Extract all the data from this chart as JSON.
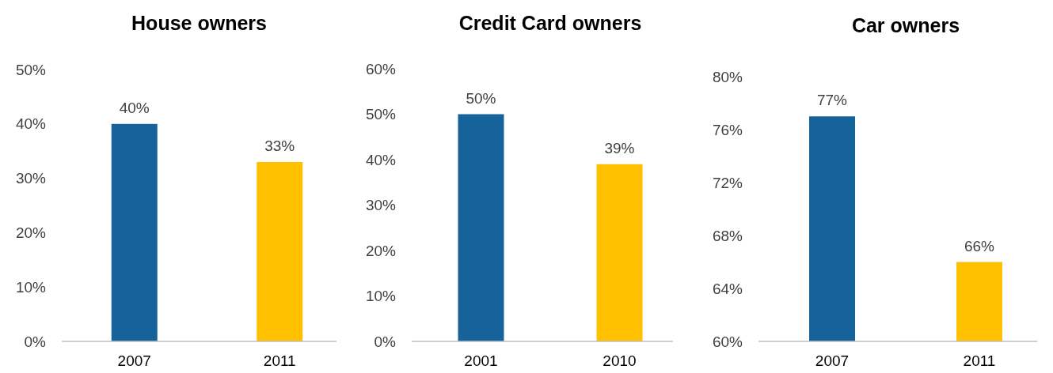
{
  "chart_data": [
    {
      "type": "bar",
      "title": "House owners",
      "categories": [
        "2007",
        "2011"
      ],
      "values": [
        40,
        33
      ],
      "colors": [
        "#15639a",
        "#ffc000"
      ],
      "value_labels": [
        "40%",
        "33%"
      ],
      "ylim": [
        0,
        50
      ],
      "yticks": [
        {
          "value": 0,
          "label": "0%"
        },
        {
          "value": 10,
          "label": "10%"
        },
        {
          "value": 20,
          "label": "20%"
        },
        {
          "value": 30,
          "label": "30%"
        },
        {
          "value": 40,
          "label": "40%"
        },
        {
          "value": 50,
          "label": "50%"
        }
      ]
    },
    {
      "type": "bar",
      "title": "Credit Card owners",
      "categories": [
        "2001",
        "2010"
      ],
      "values": [
        50,
        39
      ],
      "colors": [
        "#15639a",
        "#ffc000"
      ],
      "value_labels": [
        "50%",
        "39%"
      ],
      "ylim": [
        0,
        60
      ],
      "yticks": [
        {
          "value": 0,
          "label": "0%"
        },
        {
          "value": 10,
          "label": "10%"
        },
        {
          "value": 20,
          "label": "20%"
        },
        {
          "value": 30,
          "label": "30%"
        },
        {
          "value": 40,
          "label": "40%"
        },
        {
          "value": 50,
          "label": "50%"
        },
        {
          "value": 60,
          "label": "60%"
        }
      ]
    },
    {
      "type": "bar",
      "title": "Car owners",
      "categories": [
        "2007",
        "2011"
      ],
      "values": [
        77,
        66
      ],
      "colors": [
        "#15639a",
        "#ffc000"
      ],
      "value_labels": [
        "77%",
        "66%"
      ],
      "ylim": [
        60,
        80
      ],
      "yticks": [
        {
          "value": 60,
          "label": "60%"
        },
        {
          "value": 64,
          "label": "64%"
        },
        {
          "value": 68,
          "label": "68%"
        },
        {
          "value": 72,
          "label": "72%"
        },
        {
          "value": 76,
          "label": "76%"
        },
        {
          "value": 80,
          "label": "80%"
        }
      ]
    }
  ]
}
